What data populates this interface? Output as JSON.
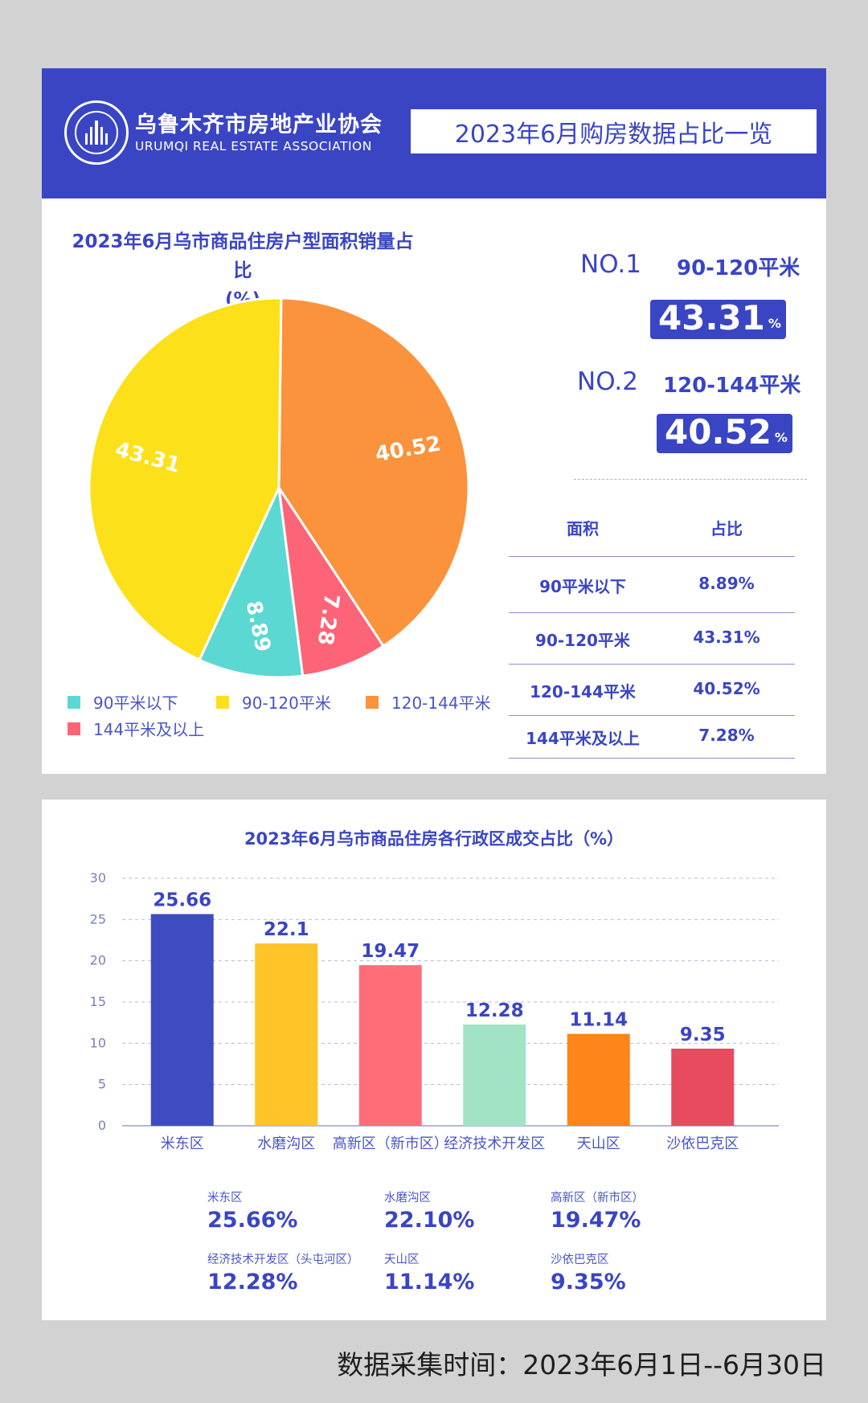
{
  "header": {
    "org_cn": "乌鲁木齐市房地产业协会",
    "org_en": "URUMQI REAL ESTATE ASSOCIATION",
    "page_title": "2023年6月购房数据占比一览"
  },
  "rankings": [
    {
      "no": "NO.1",
      "range": "90-120平米",
      "value": "43.31",
      "pct": "%"
    },
    {
      "no": "NO.2",
      "range": "120-144平米",
      "value": "40.52",
      "pct": "%"
    }
  ],
  "table": {
    "headers": [
      "面积",
      "占比"
    ],
    "rows": [
      [
        "90平米以下",
        "8.89%"
      ],
      [
        "90-120平米",
        "43.31%"
      ],
      [
        "120-144平米",
        "40.52%"
      ],
      [
        "144平米及以上",
        "7.28%"
      ]
    ]
  },
  "district_stats": [
    {
      "name": "米东区",
      "value": "25.66%"
    },
    {
      "name": "水磨沟区",
      "value": "22.10%"
    },
    {
      "name": "高新区（新市区）",
      "value": "19.47%"
    },
    {
      "name": "经济技术开发区（头屯河区）",
      "value": "12.28%"
    },
    {
      "name": "天山区",
      "value": "11.14%"
    },
    {
      "name": "沙依巴克区",
      "value": "9.35%"
    }
  ],
  "footer": "数据采集时间：2023年6月1日--6月30日",
  "chart_data": [
    {
      "type": "pie",
      "title": "2023年6月乌市商品住房户型面积销量占比",
      "subtitle": "(%)",
      "labels": [
        "90平米以下",
        "90-120平米",
        "120-144平米",
        "144平米及以上"
      ],
      "values": [
        8.89,
        43.31,
        40.52,
        7.28
      ],
      "colors": [
        "#5cd8d2",
        "#fce019",
        "#fb923c",
        "#fd6478"
      ],
      "legend": "bottom"
    },
    {
      "type": "bar",
      "title": "2023年6月乌市商品住房各行政区成交占比（%）",
      "categories": [
        "米东区",
        "水磨沟区",
        "高新区（新市区）",
        "经济技术开发区\n（头屯河区）",
        "天山区",
        "沙依巴克区"
      ],
      "values": [
        25.66,
        22.1,
        19.47,
        12.28,
        11.14,
        9.35
      ],
      "colors": [
        "#3f4bc1",
        "#fdc327",
        "#fe6e78",
        "#a2e3c6",
        "#fd8519",
        "#e84a5e"
      ],
      "ylim": [
        0,
        30
      ],
      "yticks": [
        0,
        5,
        10,
        15,
        20,
        25,
        30
      ],
      "grid": true
    }
  ]
}
